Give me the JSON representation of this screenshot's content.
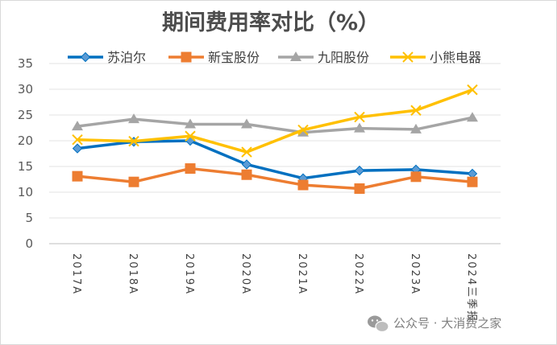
{
  "chart_data": {
    "type": "line",
    "title": "期间费用率对比（%）",
    "xlabel": "",
    "ylabel": "",
    "categories": [
      "2017A",
      "2018A",
      "2019A",
      "2020A",
      "2021A",
      "2022A",
      "2023A",
      "2024三季报"
    ],
    "ylim": [
      0,
      35
    ],
    "yticks": [
      0,
      5,
      10,
      15,
      20,
      25,
      30,
      35
    ],
    "grid": true,
    "legend": "top",
    "series": [
      {
        "name": "苏泊尔",
        "color": "#0070c0",
        "marker": "diamond",
        "values": [
          18.5,
          19.8,
          20.0,
          15.4,
          12.7,
          14.2,
          14.4,
          13.6
        ]
      },
      {
        "name": "新宝股份",
        "color": "#ed7d31",
        "marker": "square",
        "values": [
          13.1,
          12.0,
          14.6,
          13.4,
          11.4,
          10.7,
          13.0,
          12.0
        ]
      },
      {
        "name": "九阳股份",
        "color": "#a5a5a5",
        "marker": "triangle",
        "values": [
          22.8,
          24.2,
          23.2,
          23.2,
          21.6,
          22.4,
          22.2,
          24.5
        ]
      },
      {
        "name": "小熊电器",
        "color": "#ffc000",
        "marker": "x",
        "values": [
          20.2,
          19.9,
          20.9,
          17.8,
          22.1,
          24.6,
          25.9,
          29.9
        ]
      }
    ]
  },
  "watermark": {
    "text": "公众号 · 大消费之家",
    "icon": "wechat-icon"
  }
}
